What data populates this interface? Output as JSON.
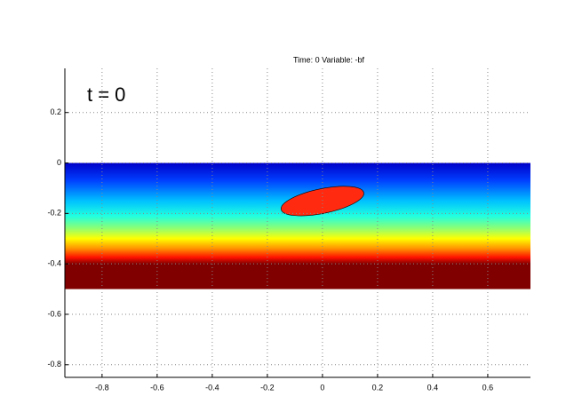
{
  "chart_data": {
    "type": "field",
    "title": "Time: 0 Variable: -bf",
    "annotation": "t = 0",
    "xlim": [
      -0.935,
      0.755
    ],
    "ylim": [
      -0.85,
      0.375
    ],
    "xticks": [
      -0.8,
      -0.6,
      -0.4,
      -0.2,
      0,
      0.2,
      0.4,
      0.6
    ],
    "yticks": [
      0.2,
      0,
      -0.2,
      -0.4,
      -0.6,
      -0.8
    ],
    "grid": true,
    "colormap": "jet",
    "field": {
      "x": [
        -0.935,
        0.755
      ],
      "y": [
        -0.5,
        0
      ]
    },
    "ellipse": {
      "cx": 0,
      "cy": -0.151,
      "rx": 0.153,
      "ry": 0.049,
      "angle": -11.5,
      "color": "#ff2a10"
    }
  }
}
